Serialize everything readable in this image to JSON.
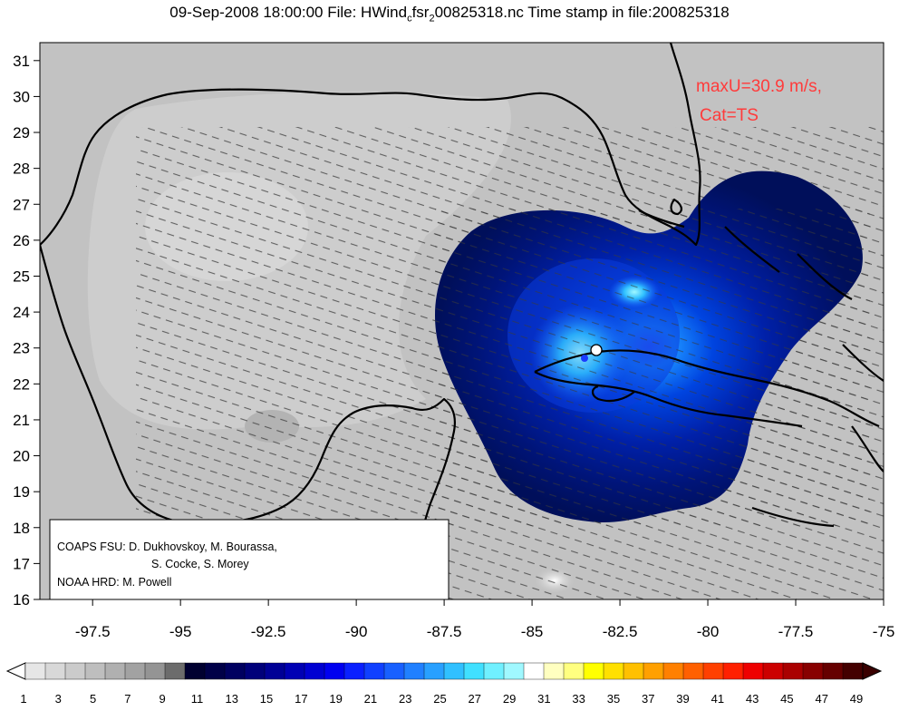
{
  "title": {
    "prefix": "09-Sep-2008 18:00:00 File: HWind",
    "sub1": "c",
    "mid": "fsr",
    "sub2": "2",
    "suffix": "00825318.nc Time stamp in file:200825318"
  },
  "annotation": {
    "maxu": "maxU=30.9 m/s,",
    "cat": "Cat=TS",
    "color": "#ff3b3b"
  },
  "credits": {
    "line1": "COAPS FSU: D. Dukhovskoy, M. Bourassa,",
    "line2": "S. Cocke, S. Morey",
    "line3": "NOAA HRD:  M. Powell"
  },
  "axes": {
    "x_ticks": [
      "-97.5",
      "-95",
      "-92.5",
      "-90",
      "-87.5",
      "-85",
      "-82.5",
      "-80",
      "-77.5",
      "-75"
    ],
    "y_ticks": [
      "31",
      "30",
      "29",
      "28",
      "27",
      "26",
      "25",
      "24",
      "23",
      "22",
      "21",
      "20",
      "19",
      "18",
      "17",
      "16"
    ],
    "xlim": [
      -99,
      -75
    ],
    "ylim": [
      16,
      31.5
    ]
  },
  "colorbar": {
    "labels": [
      "1",
      "3",
      "5",
      "7",
      "9",
      "11",
      "13",
      "15",
      "17",
      "19",
      "21",
      "23",
      "25",
      "27",
      "29",
      "31",
      "33",
      "35",
      "37",
      "39",
      "41",
      "43",
      "45",
      "47",
      "49"
    ],
    "colors": [
      "#e6e6e6",
      "#d8d8d8",
      "#cbcbcb",
      "#bebebe",
      "#b0b0b0",
      "#a2a2a2",
      "#949494",
      "#6c6c6c",
      "#000030",
      "#000048",
      "#000060",
      "#00007a",
      "#000096",
      "#0000b4",
      "#0000d2",
      "#0000f0",
      "#0a20ff",
      "#1040ff",
      "#1860ff",
      "#2080ff",
      "#28a0ff",
      "#30c0ff",
      "#40e0ff",
      "#70f0ff",
      "#a0f8ff",
      "#ffffff",
      "#ffffc0",
      "#ffff80",
      "#ffff00",
      "#ffe000",
      "#ffc000",
      "#ffa000",
      "#ff8000",
      "#ff6000",
      "#ff4000",
      "#ff2000",
      "#ee0000",
      "#cc0000",
      "#aa0000",
      "#880000",
      "#660000",
      "#440000"
    ]
  },
  "storm_center": {
    "lon": -83.1,
    "lat": 22.9
  }
}
